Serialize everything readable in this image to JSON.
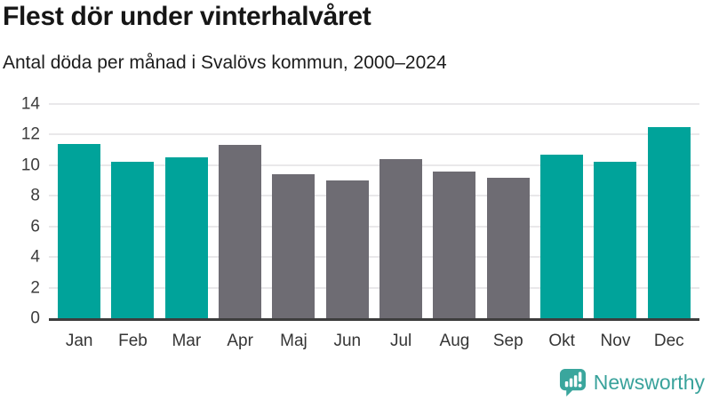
{
  "header": {
    "title": "Flest dör under vinterhalvåret",
    "subtitle": "Antal döda per månad i Svalövs kommun, 2000–2024"
  },
  "chart_data": {
    "type": "bar",
    "title": "Flest dör under vinterhalvåret",
    "subtitle": "Antal döda per månad i Svalövs kommun, 2000–2024",
    "categories": [
      "Jan",
      "Feb",
      "Mar",
      "Apr",
      "Maj",
      "Jun",
      "Jul",
      "Aug",
      "Sep",
      "Okt",
      "Nov",
      "Dec"
    ],
    "values": [
      11.4,
      10.2,
      10.5,
      11.3,
      9.4,
      9.0,
      10.4,
      9.6,
      9.2,
      10.7,
      10.2,
      12.5
    ],
    "bar_colors": [
      "#00a39a",
      "#00a39a",
      "#00a39a",
      "#6e6c73",
      "#6e6c73",
      "#6e6c73",
      "#6e6c73",
      "#6e6c73",
      "#6e6c73",
      "#00a39a",
      "#00a39a",
      "#00a39a"
    ],
    "xlabel": "",
    "ylabel": "",
    "ylim": [
      0,
      14
    ],
    "yticks": [
      0,
      2,
      4,
      6,
      8,
      10,
      12,
      14
    ],
    "grid": true,
    "legend": false
  },
  "colors": {
    "highlight_teal": "#00a39a",
    "muted_gray": "#6e6c73",
    "axis_line": "#3d3d3d",
    "gridline": "#e9e8ea",
    "logo_teal": "#39a29b",
    "text": "#161616"
  },
  "branding": {
    "logo_text": "Newsworthy",
    "logo_icon": "bar-chart-speech-bubble-icon"
  }
}
